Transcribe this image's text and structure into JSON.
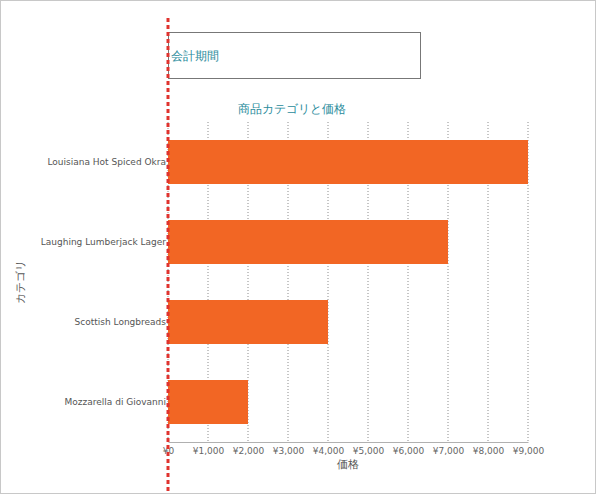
{
  "chart_data": {
    "type": "bar",
    "orientation": "horizontal",
    "title": "商品カテゴリと価格",
    "annotations": [
      "会計期間"
    ],
    "x_label": "価格",
    "y_label": "カテゴリ",
    "categories": [
      "Louisiana Hot Spiced Okra",
      "Laughing Lumberjack Lager",
      "Scottish Longbreads",
      "Mozzarella di Giovanni"
    ],
    "values": [
      9000,
      7000,
      4000,
      2000
    ],
    "color": "#f26624",
    "xlim": [
      0,
      9000
    ],
    "xticks": [
      {
        "value": 0,
        "label": "¥0"
      },
      {
        "value": 1000,
        "label": "¥1,000"
      },
      {
        "value": 2000,
        "label": "¥2,000"
      },
      {
        "value": 3000,
        "label": "¥3,000"
      },
      {
        "value": 4000,
        "label": "¥4,000"
      },
      {
        "value": 5000,
        "label": "¥5,000"
      },
      {
        "value": 6000,
        "label": "¥6,000"
      },
      {
        "value": 7000,
        "label": "¥7,000"
      },
      {
        "value": 8000,
        "label": "¥8,000"
      },
      {
        "value": 9000,
        "label": "¥9,000"
      }
    ],
    "grid": true
  }
}
